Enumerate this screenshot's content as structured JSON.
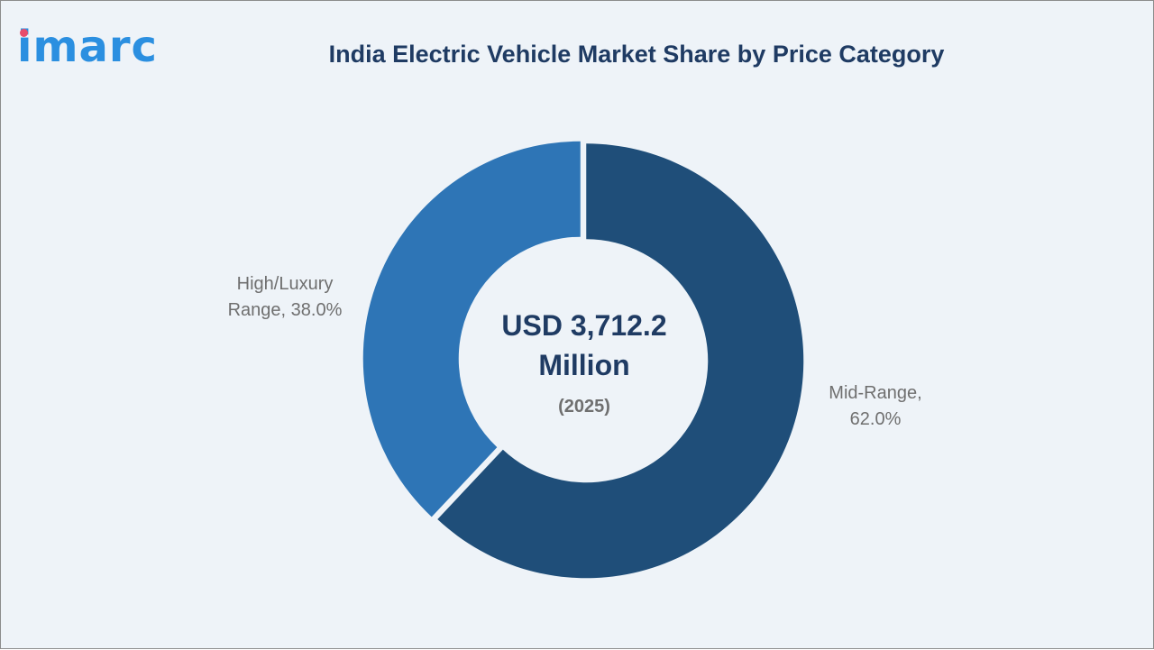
{
  "brand": {
    "logo_text": "imarc",
    "logo_color": "#2b8fe0",
    "logo_dot_color": "#e84c6b"
  },
  "chart_data": {
    "type": "pie",
    "variant": "donut",
    "title": "India Electric Vehicle Market Share by Price Category",
    "center_text": {
      "line1": "USD 3,712.2",
      "line2": "Million",
      "line3": "(2025)"
    },
    "slices": [
      {
        "label_line1": "Mid-Range,",
        "label_line2": "62.0%",
        "name": "Mid-Range",
        "value": 62.0,
        "color": "#1f4e79"
      },
      {
        "label_line1": "High/Luxury",
        "label_line2": "Range, 38.0%",
        "name": "High/Luxury Range",
        "value": 38.0,
        "color": "#2e75b6"
      }
    ],
    "unit": "%"
  }
}
